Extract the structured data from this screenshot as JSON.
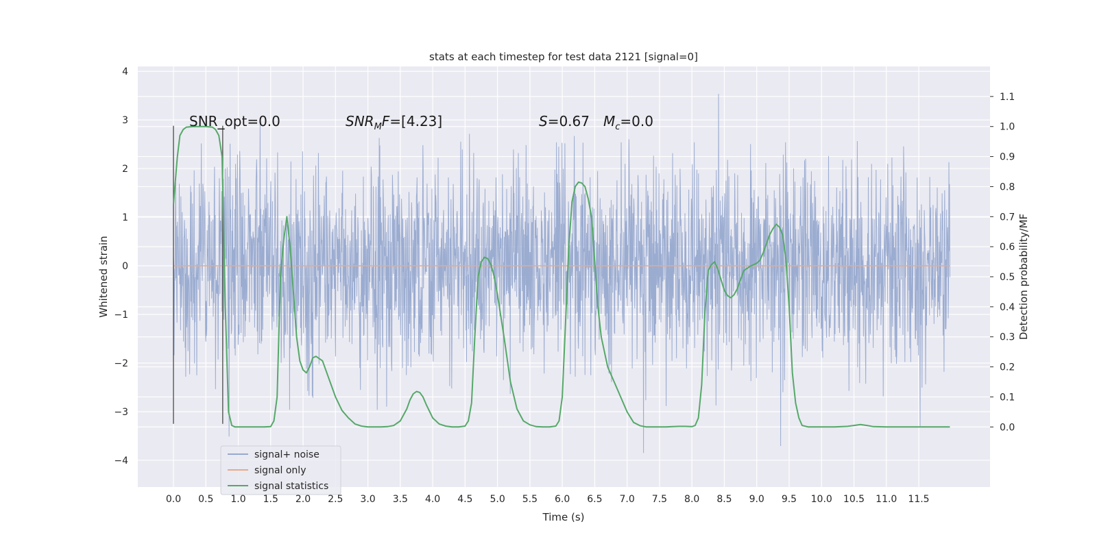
{
  "chart_data": {
    "type": "line",
    "title": "stats at each timestep for test data 2121 [signal=0]",
    "xlabel": "Time (s)",
    "ylabel": "Whitened strain",
    "y2label": "Detection probability/MF",
    "xlim": [
      -0.55,
      12.6
    ],
    "ylim": [
      -4.55,
      4.1
    ],
    "y2lim": [
      -0.2,
      1.2
    ],
    "x_ticks": [
      0.0,
      0.5,
      1.0,
      1.5,
      2.0,
      2.5,
      3.0,
      3.5,
      4.0,
      4.5,
      5.0,
      5.5,
      6.0,
      6.5,
      7.0,
      7.5,
      8.0,
      8.5,
      9.0,
      9.5,
      10.0,
      10.5,
      11.0,
      11.5
    ],
    "y_ticks": [
      -4,
      -3,
      -2,
      -1,
      0,
      1,
      2,
      3,
      4
    ],
    "y2_ticks": [
      0.0,
      0.1,
      0.2,
      0.3,
      0.4,
      0.5,
      0.6,
      0.7,
      0.8,
      0.9,
      1.0,
      1.1
    ],
    "grid": true,
    "legend_position": "lower-left",
    "annotations": {
      "snr_opt": "SNR_opt=0.0",
      "snr_mf": "SNR_MF=[4.23]",
      "s_value": "S=0.67",
      "mc_value": "M_c=0.0"
    },
    "window_markers": [
      0.0,
      0.76
    ],
    "series": [
      {
        "name": "signal+ noise",
        "color": "#97a9cf",
        "axis": "left",
        "x_range": [
          0.0,
          11.98
        ],
        "description_range": [
          -4.1,
          3.7
        ]
      },
      {
        "name": "signal only",
        "color": "#e8a98a",
        "axis": "left",
        "x": [
          0.0,
          11.98
        ],
        "y": [
          0.0,
          0.0
        ]
      },
      {
        "name": "signal statistics",
        "color": "#55a868",
        "axis": "right",
        "x": [
          0.0,
          0.03,
          0.06,
          0.1,
          0.15,
          0.2,
          0.3,
          0.4,
          0.5,
          0.6,
          0.65,
          0.7,
          0.75,
          0.8,
          0.85,
          0.9,
          0.95,
          1.0,
          1.1,
          1.2,
          1.3,
          1.4,
          1.5,
          1.55,
          1.6,
          1.65,
          1.7,
          1.75,
          1.8,
          1.85,
          1.9,
          1.95,
          2.0,
          2.05,
          2.1,
          2.15,
          2.2,
          2.3,
          2.4,
          2.5,
          2.6,
          2.7,
          2.8,
          2.9,
          3.0,
          3.1,
          3.2,
          3.3,
          3.4,
          3.5,
          3.6,
          3.65,
          3.7,
          3.75,
          3.8,
          3.85,
          3.9,
          4.0,
          4.1,
          4.2,
          4.3,
          4.4,
          4.5,
          4.55,
          4.6,
          4.65,
          4.7,
          4.75,
          4.8,
          4.85,
          4.9,
          4.95,
          5.0,
          5.1,
          5.2,
          5.3,
          5.4,
          5.5,
          5.6,
          5.7,
          5.8,
          5.9,
          5.95,
          6.0,
          6.05,
          6.1,
          6.15,
          6.2,
          6.25,
          6.3,
          6.35,
          6.4,
          6.45,
          6.5,
          6.55,
          6.6,
          6.7,
          6.8,
          6.9,
          7.0,
          7.1,
          7.2,
          7.3,
          7.4,
          7.5,
          7.6,
          7.7,
          7.8,
          7.9,
          8.0,
          8.05,
          8.1,
          8.15,
          8.2,
          8.25,
          8.3,
          8.35,
          8.4,
          8.45,
          8.5,
          8.55,
          8.6,
          8.65,
          8.7,
          8.8,
          8.9,
          9.0,
          9.05,
          9.1,
          9.15,
          9.2,
          9.25,
          9.3,
          9.35,
          9.4,
          9.45,
          9.5,
          9.55,
          9.6,
          9.65,
          9.7,
          9.8,
          9.9,
          10.0,
          10.2,
          10.4,
          10.5,
          10.6,
          10.7,
          10.8,
          11.0,
          11.2,
          11.5,
          11.8,
          11.98
        ],
        "y": [
          0.74,
          0.82,
          0.9,
          0.97,
          0.99,
          0.998,
          1.0,
          1.0,
          1.0,
          0.998,
          0.99,
          0.97,
          0.9,
          0.4,
          0.05,
          0.005,
          0.0,
          0.0,
          0.0,
          0.0,
          0.0,
          0.0,
          0.001,
          0.02,
          0.1,
          0.5,
          0.62,
          0.7,
          0.6,
          0.45,
          0.3,
          0.22,
          0.19,
          0.18,
          0.2,
          0.23,
          0.235,
          0.22,
          0.16,
          0.1,
          0.055,
          0.03,
          0.01,
          0.003,
          0.0,
          0.0,
          0.0,
          0.001,
          0.005,
          0.02,
          0.06,
          0.09,
          0.11,
          0.118,
          0.115,
          0.1,
          0.075,
          0.03,
          0.01,
          0.003,
          0.0,
          0.0,
          0.003,
          0.02,
          0.08,
          0.3,
          0.5,
          0.55,
          0.565,
          0.56,
          0.54,
          0.5,
          0.44,
          0.3,
          0.15,
          0.06,
          0.02,
          0.007,
          0.001,
          0.0,
          0.0,
          0.003,
          0.02,
          0.1,
          0.35,
          0.6,
          0.75,
          0.8,
          0.815,
          0.812,
          0.8,
          0.76,
          0.7,
          0.55,
          0.4,
          0.3,
          0.2,
          0.15,
          0.1,
          0.05,
          0.015,
          0.004,
          0.0,
          0.0,
          0.0,
          0.0,
          0.001,
          0.002,
          0.002,
          0.001,
          0.005,
          0.03,
          0.14,
          0.38,
          0.52,
          0.54,
          0.55,
          0.525,
          0.49,
          0.455,
          0.437,
          0.43,
          0.44,
          0.46,
          0.52,
          0.535,
          0.545,
          0.555,
          0.58,
          0.61,
          0.64,
          0.66,
          0.675,
          0.665,
          0.64,
          0.56,
          0.4,
          0.18,
          0.08,
          0.03,
          0.005,
          0.0,
          0.0,
          0.0,
          0.0,
          0.002,
          0.005,
          0.008,
          0.005,
          0.001,
          0.0,
          0.0,
          0.0,
          0.0,
          0.0
        ]
      }
    ]
  }
}
